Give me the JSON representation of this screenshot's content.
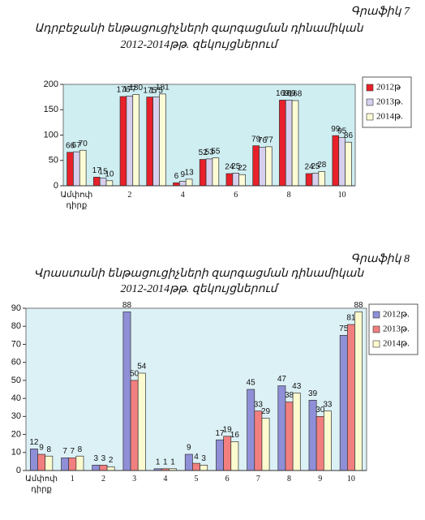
{
  "chart_data": [
    {
      "type": "bar",
      "figure_label": "Գրաֆիկ 7",
      "title": "Ադրբեջանի ենթացուցիչների զարգացման դինամիկան",
      "subtitle": "2012-2014թթ. զեկույցներում",
      "categories": [
        "Ամփոփ դիրք",
        null,
        "2",
        null,
        "4",
        null,
        "6",
        null,
        "8",
        null,
        "10"
      ],
      "series": [
        {
          "name": "2012թ",
          "color": "#e8202a",
          "values": [
            66,
            17,
            176,
            175,
            6,
            52,
            24,
            79,
            169,
            24,
            99
          ]
        },
        {
          "name": "2013թ.",
          "color": "#d6d0ee",
          "values": [
            67,
            15,
            177,
            175,
            9,
            53,
            25,
            76,
            169,
            25,
            95
          ]
        },
        {
          "name": "2014թ.",
          "color": "#fbfbd6",
          "values": [
            70,
            10,
            180,
            181,
            13,
            55,
            22,
            77,
            168,
            28,
            86
          ]
        }
      ],
      "ylim": [
        0,
        200
      ],
      "yticks": [
        0,
        50,
        100,
        150,
        200
      ],
      "grid": false,
      "legend": "right"
    },
    {
      "type": "bar",
      "figure_label": "Գրաֆիկ 8",
      "title": "Վրաստանի ենթացուցիչների զարգացման դինամիկան",
      "subtitle": "2012-2014թթ. զեկույցներում",
      "categories": [
        "Ամփոփ դիրք",
        "1",
        "2",
        "3",
        "4",
        "5",
        "6",
        "7",
        "8",
        "9",
        "10"
      ],
      "series": [
        {
          "name": "2012թ.",
          "color": "#8f8fd8",
          "values": [
            12,
            7,
            3,
            88,
            1,
            9,
            17,
            45,
            47,
            39,
            75
          ]
        },
        {
          "name": "2013թ.",
          "color": "#f27f7f",
          "values": [
            9,
            7,
            3,
            50,
            1,
            4,
            19,
            33,
            38,
            30,
            81
          ]
        },
        {
          "name": "2014թ.",
          "color": "#fbfbcf",
          "values": [
            8,
            8,
            2,
            54,
            1,
            3,
            16,
            29,
            43,
            33,
            88
          ]
        }
      ],
      "ylim": [
        0,
        90
      ],
      "yticks": [
        0,
        10,
        20,
        30,
        40,
        50,
        60,
        70,
        80,
        90
      ],
      "grid": false,
      "legend": "right"
    }
  ]
}
